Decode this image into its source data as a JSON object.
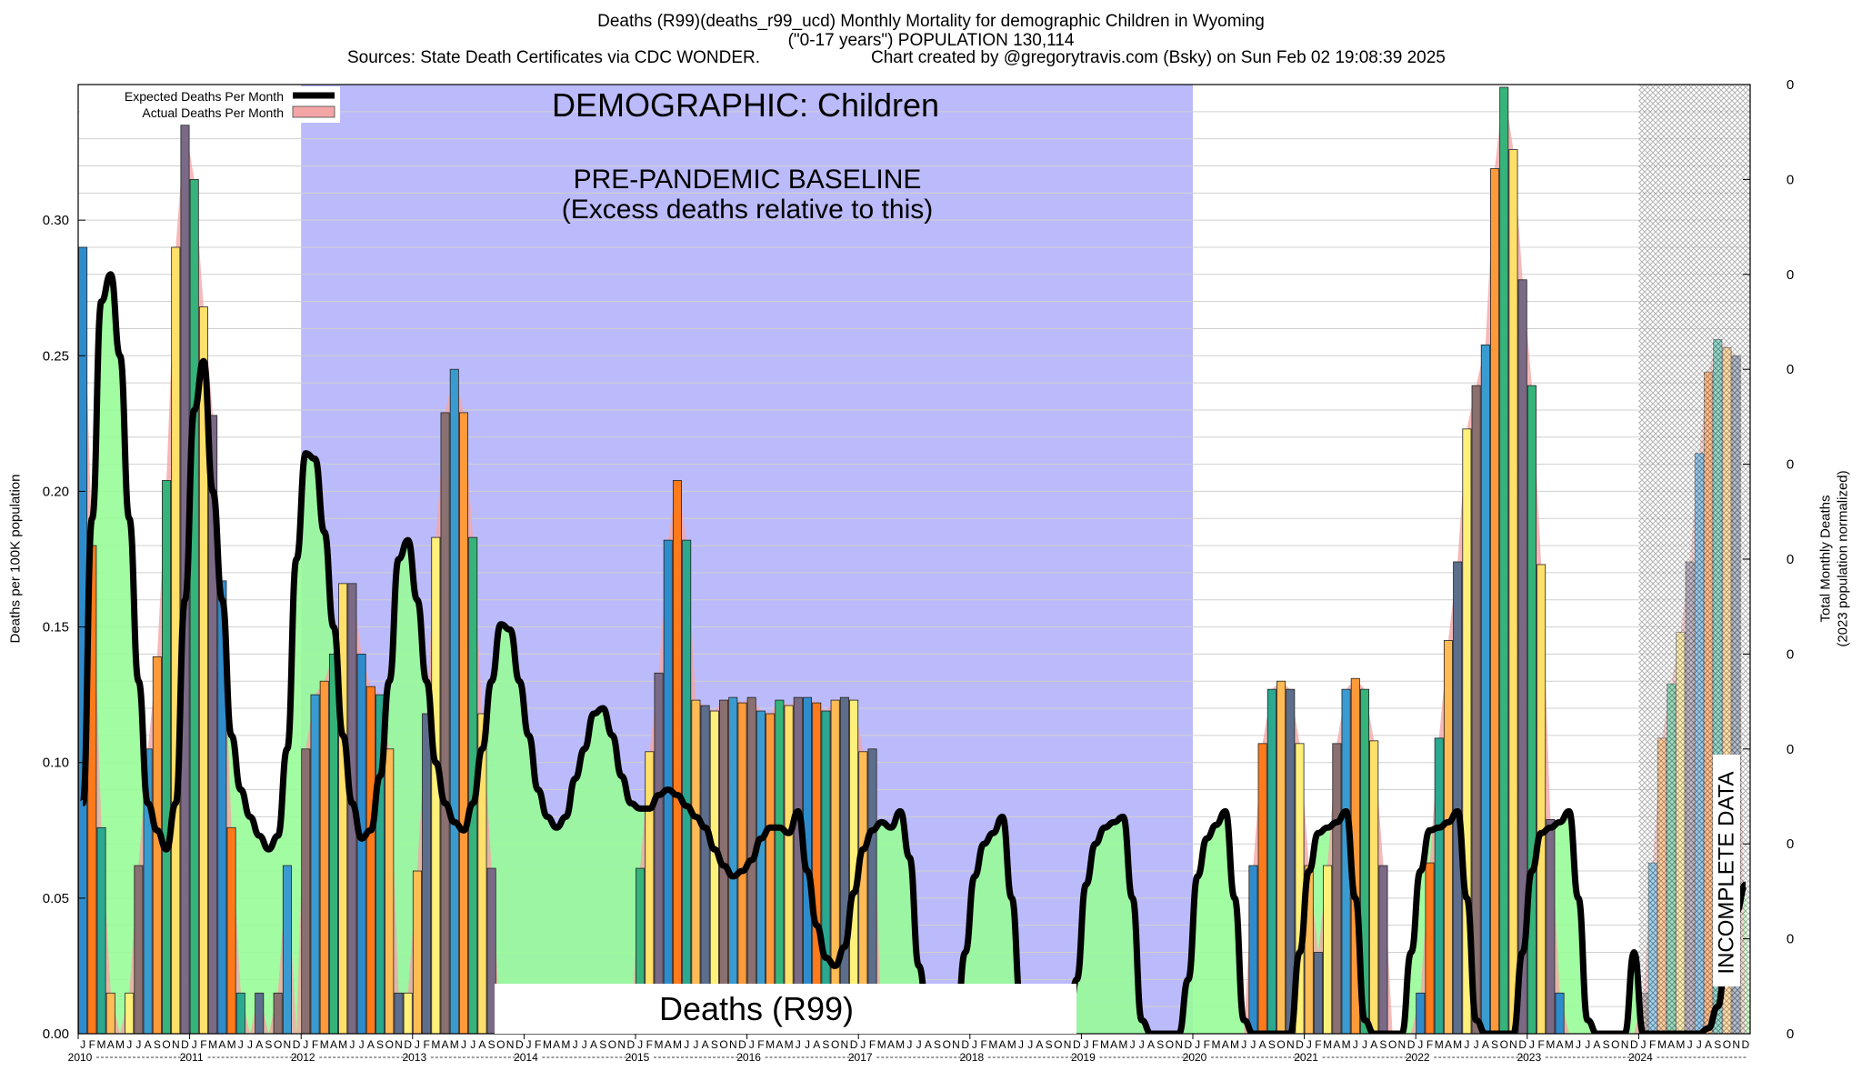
{
  "header": {
    "title_line1": "Deaths (R99)(deaths_r99_ucd) Monthly Mortality for demographic Children in Wyoming",
    "title_line2": "(\"0-17 years\") POPULATION 130,114",
    "sources": "Sources: State Death Certificates via CDC WONDER.",
    "credit": "Chart created by @gregorytravis.com (Bsky) on Sun Feb 02 19:08:39 2025"
  },
  "colors": {
    "baseline_region": "#bbbbfb",
    "expected_fill": "#98fc98",
    "actual_fill": "#f4a6a6",
    "expected_line": "#000000",
    "bar_palette": [
      "#2f8ccc",
      "#3a9bd0",
      "#2aa890",
      "#35b37a",
      "#5c6e8c",
      "#7a6a86",
      "#8a7070",
      "#ff7a1a",
      "#ff9a3a",
      "#ffbb55",
      "#ffe06a",
      "#fff07a"
    ],
    "incomplete_hatch": "#777777"
  },
  "chart_data": {
    "type": "bar",
    "title": "Deaths (R99)(deaths_r99_ucd) Monthly Mortality for demographic Children in Wyoming",
    "ylabel": "Deaths per 100K population",
    "y2label_line1": "Total Monthly Deaths",
    "y2label_line2": "(2023 population normalized)",
    "ylim": [
      0,
      0.35
    ],
    "yticks": [
      "0.00",
      "0.05",
      "0.10",
      "0.15",
      "0.20",
      "0.25",
      "0.30"
    ],
    "y2ticks": [
      "0",
      "0",
      "0",
      "0",
      "0",
      "0",
      "0",
      "0",
      "0",
      "0",
      "0"
    ],
    "grid": true,
    "legend_position": "top-left",
    "legend": [
      "Expected Deaths Per Month",
      "Actual Deaths Per Month"
    ],
    "start": "2010-01",
    "month_letters": [
      "J",
      "F",
      "M",
      "A",
      "M",
      "J",
      "J",
      "A",
      "S",
      "O",
      "N",
      "D"
    ],
    "years": [
      "2010",
      "2011",
      "2012",
      "2013",
      "2014",
      "2015",
      "2016",
      "2017",
      "2018",
      "2019",
      "2020",
      "2021",
      "2022",
      "2023",
      "2024"
    ],
    "annotations": {
      "demographic": "DEMOGRAPHIC: Children",
      "baseline_line1": "PRE-PANDEMIC BASELINE",
      "baseline_line2": "(Excess deaths relative to this)",
      "cause": "Deaths (R99)",
      "incomplete": "INCOMPLETE DATA"
    },
    "baseline_period": [
      "2012-01",
      "2019-12"
    ],
    "incomplete_period": [
      "2024-01",
      "2024-12"
    ],
    "actual": [
      0.29,
      0.18,
      0.076,
      0.015,
      0,
      0.015,
      0.062,
      0.105,
      0.139,
      0.204,
      0.29,
      0.335,
      0.315,
      0.268,
      0.228,
      0.167,
      0.076,
      0.015,
      0.0,
      0.015,
      0,
      0.015,
      0.062,
      0,
      0.105,
      0.125,
      0.13,
      0.14,
      0.166,
      0.166,
      0.14,
      0.128,
      0.125,
      0.105,
      0.015,
      0.015,
      0.06,
      0.118,
      0.183,
      0.229,
      0.245,
      0.229,
      0.183,
      0.118,
      0.061,
      0.0,
      0.0,
      0.0,
      0.0,
      0.0,
      0.0,
      0.0,
      0.0,
      0.0,
      0.0,
      0.0,
      0.0,
      0.0,
      0.0,
      0.0,
      0.061,
      0.104,
      0.133,
      0.182,
      0.204,
      0.182,
      0.123,
      0.121,
      0.119,
      0.123,
      0.124,
      0.122,
      0.124,
      0.119,
      0.118,
      0.123,
      0.121,
      0.124,
      0.124,
      0.122,
      0.119,
      0.123,
      0.124,
      0.123,
      0.104,
      0.105,
      0.0,
      0.0,
      0.0,
      0.0,
      0.0,
      0.0,
      0.0,
      0.0,
      0.0,
      0.0,
      0.0,
      0.0,
      0.0,
      0.0,
      0.0,
      0.0,
      0.0,
      0.0,
      0.0,
      0.0,
      0.0,
      0.0,
      0.0,
      0.0,
      0.0,
      0.0,
      0.0,
      0.0,
      0.0,
      0.0,
      0.0,
      0.0,
      0.0,
      0.0,
      0.0,
      0.0,
      0.0,
      0.0,
      0.0,
      0.0,
      0.062,
      0.107,
      0.127,
      0.13,
      0.127,
      0.107,
      0.062,
      0.03,
      0.062,
      0.107,
      0.127,
      0.131,
      0.127,
      0.108,
      0.062,
      0.0,
      0.0,
      0.0,
      0.015,
      0.063,
      0.109,
      0.145,
      0.174,
      0.223,
      0.239,
      0.254,
      0.319,
      0.349,
      0.326,
      0.278,
      0.239,
      0.173,
      0.079,
      0.015,
      0.0,
      0.0,
      0.0,
      0.0,
      0.0,
      0.0,
      0.0,
      0.0,
      0.015,
      0.063,
      0.109,
      0.129,
      0.148,
      0.174,
      0.214,
      0.244,
      0.256,
      0.253,
      0.25,
      0.0
    ],
    "expected": [
      0.085,
      0.19,
      0.27,
      0.28,
      0.25,
      0.19,
      0.13,
      0.085,
      0.075,
      0.068,
      0.085,
      0.16,
      0.23,
      0.248,
      0.2,
      0.16,
      0.11,
      0.09,
      0.08,
      0.073,
      0.068,
      0.073,
      0.105,
      0.175,
      0.214,
      0.212,
      0.185,
      0.15,
      0.11,
      0.085,
      0.072,
      0.075,
      0.095,
      0.13,
      0.175,
      0.182,
      0.16,
      0.13,
      0.1,
      0.085,
      0.078,
      0.075,
      0.085,
      0.105,
      0.13,
      0.151,
      0.149,
      0.13,
      0.11,
      0.09,
      0.08,
      0.076,
      0.08,
      0.094,
      0.105,
      0.118,
      0.12,
      0.11,
      0.095,
      0.085,
      0.083,
      0.083,
      0.088,
      0.09,
      0.088,
      0.084,
      0.08,
      0.076,
      0.068,
      0.062,
      0.058,
      0.06,
      0.064,
      0.072,
      0.076,
      0.076,
      0.074,
      0.082,
      0.06,
      0.04,
      0.028,
      0.025,
      0.032,
      0.052,
      0.068,
      0.075,
      0.078,
      0.076,
      0.082,
      0.065,
      0.025,
      0.005,
      0.002,
      0.002,
      0.002,
      0.03,
      0.058,
      0.07,
      0.074,
      0.08,
      0.05,
      0.01,
      0.002,
      0.001,
      0.0,
      0.0,
      0.0,
      0.02,
      0.055,
      0.07,
      0.076,
      0.078,
      0.08,
      0.05,
      0.005,
      0.0,
      0.0,
      0.0,
      0.0,
      0.02,
      0.058,
      0.072,
      0.077,
      0.082,
      0.05,
      0.005,
      0.0,
      0.0,
      0.0,
      0.0,
      0.0,
      0.03,
      0.06,
      0.074,
      0.076,
      0.078,
      0.082,
      0.05,
      0.005,
      0.0,
      0.0,
      0.0,
      0.0,
      0.03,
      0.06,
      0.075,
      0.076,
      0.078,
      0.082,
      0.05,
      0.005,
      0.0,
      0.0,
      0.0,
      0.0,
      0.03,
      0.06,
      0.074,
      0.076,
      0.078,
      0.082,
      0.05,
      0.005,
      0.0,
      0.0,
      0.0,
      0.0,
      0.03,
      0.0,
      0.0,
      0.0,
      0.0,
      0.0,
      0.0,
      0.0,
      0.002,
      0.01,
      0.03,
      0.045,
      0.055
    ]
  }
}
